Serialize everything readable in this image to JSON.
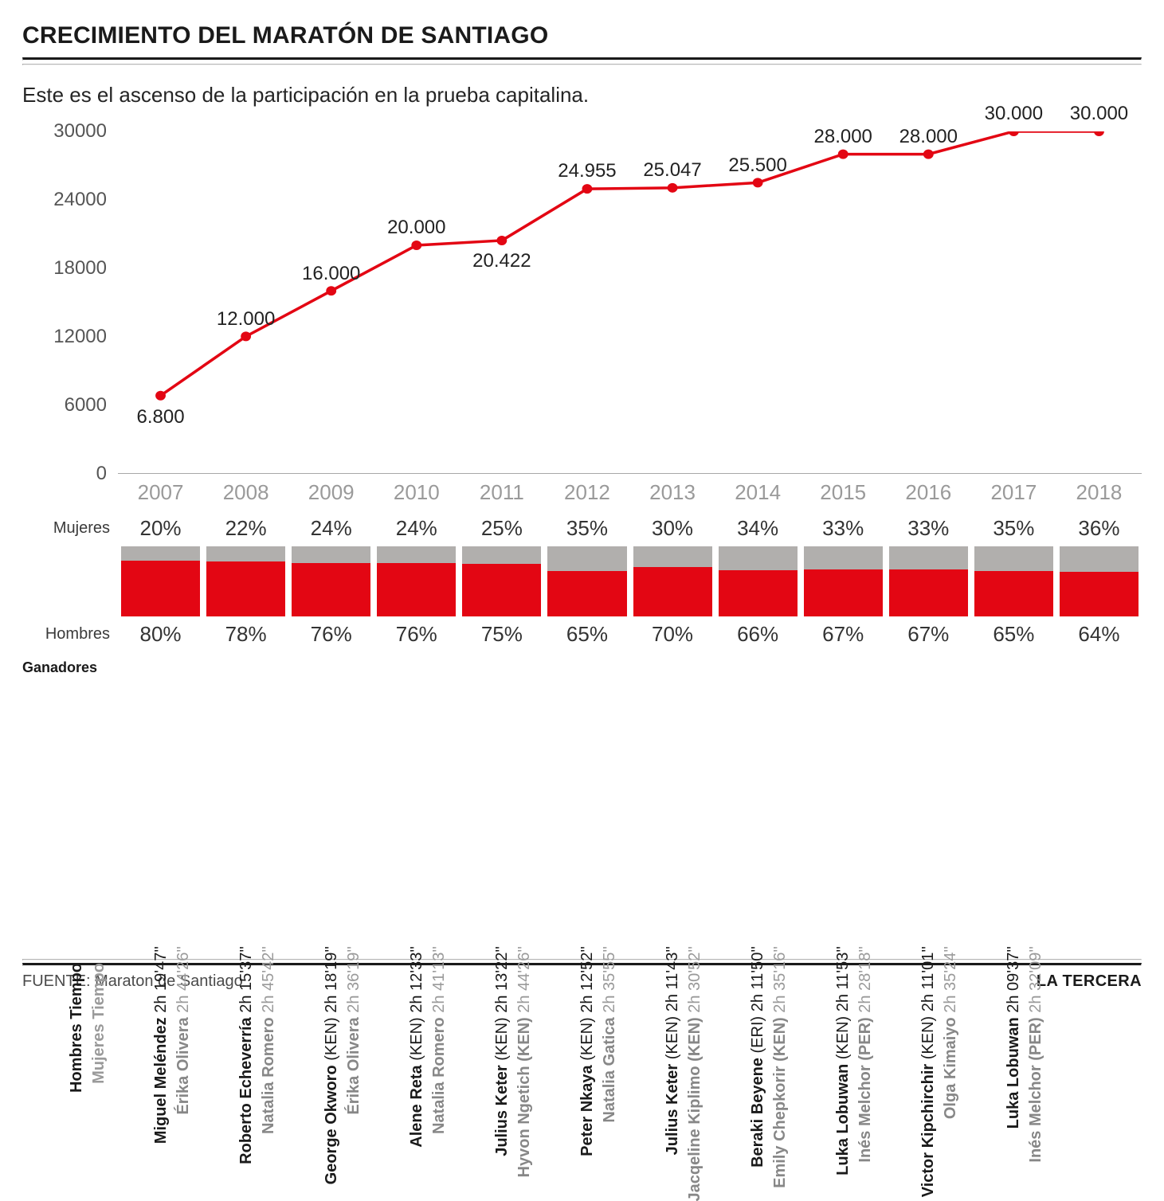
{
  "title": "CRECIMIENTO DEL MARATÓN DE SANTIAGO",
  "subtitle": "Este es el ascenso de la participación en la prueba capitalina.",
  "source_label": "FUENTE: Maraton de Santiago",
  "brand": "LA TERCERA",
  "chart": {
    "type": "line",
    "line_color": "#e30613",
    "line_width": 3.5,
    "marker_radius": 6,
    "marker_fill": "#e30613",
    "background": "#ffffff",
    "ylim": [
      0,
      30000
    ],
    "yticks": [
      0,
      6000,
      12000,
      18000,
      24000,
      30000
    ],
    "years": [
      2007,
      2008,
      2009,
      2010,
      2011,
      2012,
      2013,
      2014,
      2015,
      2016,
      2017,
      2018
    ],
    "values": [
      6800,
      12000,
      16000,
      20000,
      20422,
      24955,
      25047,
      25500,
      28000,
      28000,
      30000,
      30000
    ],
    "value_labels": [
      "6.800",
      "12.000",
      "16.000",
      "20.000",
      "20.422",
      "24.955",
      "25.047",
      "25.500",
      "28.000",
      "28.000",
      "30.000",
      "30.000"
    ],
    "label_pos": [
      "below",
      "above",
      "above",
      "above",
      "below",
      "above",
      "above",
      "above",
      "above",
      "above",
      "above",
      "above"
    ]
  },
  "labels": {
    "mujeres": "Mujeres",
    "hombres": "Hombres",
    "ganadores": "Ganadores",
    "hombres_tiempo": "Hombres Tiempo",
    "mujeres_tiempo": "Mujeres Tiempo"
  },
  "gender_split": {
    "mujeres_pct": [
      "20%",
      "22%",
      "24%",
      "24%",
      "25%",
      "35%",
      "30%",
      "34%",
      "33%",
      "33%",
      "35%",
      "36%"
    ],
    "hombres_pct": [
      "80%",
      "78%",
      "76%",
      "76%",
      "75%",
      "65%",
      "70%",
      "66%",
      "67%",
      "67%",
      "65%",
      "64%"
    ],
    "mujeres_val": [
      20,
      22,
      24,
      24,
      25,
      35,
      30,
      34,
      33,
      33,
      35,
      36
    ],
    "color_mujeres": "#b1afad",
    "color_hombres": "#e30613"
  },
  "winners": [
    {
      "male_name": "Miguel Meléndez",
      "male_time": "2h 19'47''",
      "male_country": "",
      "female_name": "Érika Olivera",
      "female_time": "2h 44'26''",
      "female_country": ""
    },
    {
      "male_name": "Roberto Echeverría",
      "male_time": "2h 15'37''",
      "male_country": "",
      "female_name": "Natalia Romero",
      "female_time": "2h 45'42''",
      "female_country": ""
    },
    {
      "male_name": "George Okworo",
      "male_time": "2h 18'19''",
      "male_country": "(KEN)",
      "female_name": "Érika Olivera",
      "female_time": "2h 36'19''",
      "female_country": ""
    },
    {
      "male_name": "Alene Reta",
      "male_time": "2h 12'33''",
      "male_country": "(KEN)",
      "female_name": "Natalia Romero",
      "female_time": "2h 41'13''",
      "female_country": ""
    },
    {
      "male_name": "Julius Keter",
      "male_time": "2h 13'22''",
      "male_country": "(KEN)",
      "female_name": "Hyvon Ngetich",
      "female_time": "2h 44'26''",
      "female_country": "(KEN)"
    },
    {
      "male_name": "Peter Nkaya",
      "male_time": "2h 12'52''",
      "male_country": "(KEN)",
      "female_name": "Natalia Gatica",
      "female_time": "2h 35'55''",
      "female_country": ""
    },
    {
      "male_name": "Julius Keter",
      "male_time": "2h 11'43''",
      "male_country": "(KEN)",
      "female_name": "Jacqeline Kiplimo",
      "female_time": "2h 30'52''",
      "female_country": "(KEN)"
    },
    {
      "male_name": "Beraki Beyene",
      "male_time": "2h 11'50''",
      "male_country": "(ERI)",
      "female_name": "Emily Chepkorir",
      "female_time": "2h 35'16''",
      "female_country": "(KEN)"
    },
    {
      "male_name": "Luka Lobuwan",
      "male_time": "2h 11'53''",
      "male_country": "(KEN)",
      "female_name": "Inés Melchor",
      "female_time": "2h 28'18''",
      "female_country": "(PER)"
    },
    {
      "male_name": "Victor Kipchirchir",
      "male_time": "2h 11'01''",
      "male_country": "(KEN)",
      "female_name": "Olga Kimaiyo",
      "female_time": "2h 35'24''",
      "female_country": ""
    },
    {
      "male_name": "Luka Lobuwan",
      "male_time": "2h 09'37''",
      "male_country": "",
      "female_name": "Inés Melchor",
      "female_time": "2h 32'09''",
      "female_country": "(PER)"
    },
    {
      "male_name": "",
      "male_time": "",
      "male_country": "",
      "female_name": "",
      "female_time": "",
      "female_country": ""
    }
  ]
}
